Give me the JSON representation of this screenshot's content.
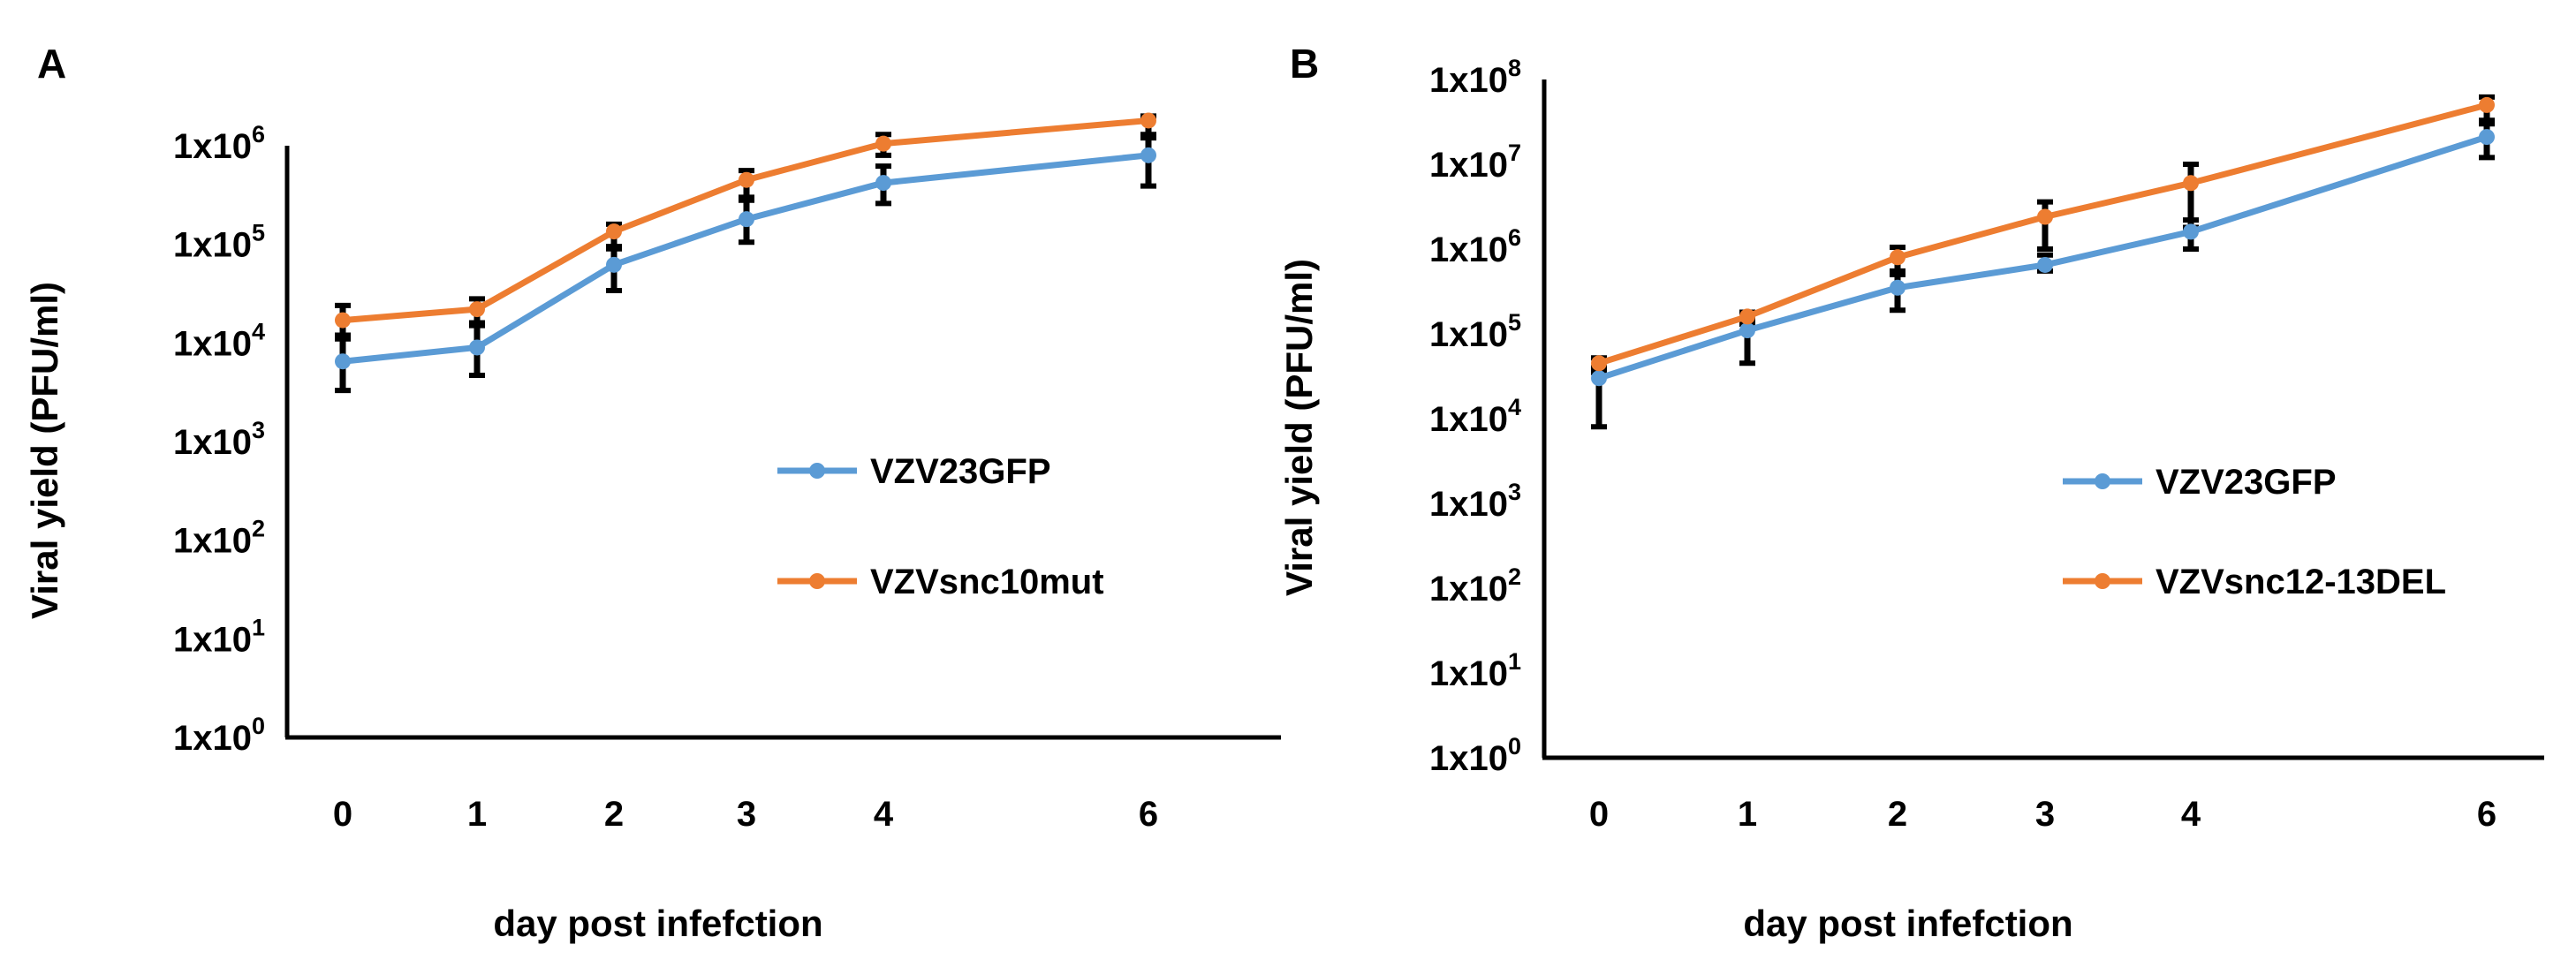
{
  "colors": {
    "series_blue": "#5B9BD5",
    "series_orange": "#ED7D31",
    "axis": "#000000",
    "error_bar": "#000000",
    "text": "#000000"
  },
  "chart_data": [
    {
      "panel_label": "A",
      "type": "line",
      "y_scale": "log10",
      "ylim": [
        1,
        1000000
      ],
      "ylabel": "Viral yield (PFU/ml)",
      "xlabel": "day post infefction",
      "x": [
        0,
        1,
        2,
        3,
        4,
        6
      ],
      "x_tick_labels": [
        "0",
        "1",
        "2",
        "3",
        "4",
        "6"
      ],
      "y_tick_labels": [
        {
          "base": "1x10",
          "exp": "0"
        },
        {
          "base": "1x10",
          "exp": "1"
        },
        {
          "base": "1x10",
          "exp": "2"
        },
        {
          "base": "1x10",
          "exp": "3"
        },
        {
          "base": "1x10",
          "exp": "4"
        },
        {
          "base": "1x10",
          "exp": "5"
        },
        {
          "base": "1x10",
          "exp": "6"
        }
      ],
      "legend_position": "center-right",
      "series": [
        {
          "name": "VZV23GFP",
          "color": "#5B9BD5",
          "values": [
            6500,
            9000,
            62000,
            180000,
            420000,
            800000
          ],
          "error_low": [
            3300,
            4700,
            34000,
            105000,
            260000,
            390000
          ],
          "error_high": [
            12000,
            16000,
            90000,
            280000,
            620000,
            1300000
          ]
        },
        {
          "name": "VZVsnc10mut",
          "color": "#ED7D31",
          "values": [
            17000,
            22000,
            135000,
            450000,
            1050000,
            1800000
          ],
          "error_low": [
            11000,
            15000,
            95000,
            300000,
            800000,
            1200000
          ],
          "error_high": [
            24000,
            28000,
            160000,
            560000,
            1300000,
            2000000
          ]
        }
      ]
    },
    {
      "panel_label": "B",
      "type": "line",
      "y_scale": "log10",
      "ylim": [
        1,
        100000000
      ],
      "ylabel": "Viral yield (PFU/ml)",
      "xlabel": "day post infefction",
      "x": [
        0,
        1,
        2,
        3,
        4,
        6
      ],
      "x_tick_labels": [
        "0",
        "1",
        "2",
        "3",
        "4",
        "6"
      ],
      "y_tick_labels": [
        {
          "base": "1x10",
          "exp": "0"
        },
        {
          "base": "1x10",
          "exp": "1"
        },
        {
          "base": "1x10",
          "exp": "2"
        },
        {
          "base": "1x10",
          "exp": "3"
        },
        {
          "base": "1x10",
          "exp": "4"
        },
        {
          "base": "1x10",
          "exp": "5"
        },
        {
          "base": "1x10",
          "exp": "6"
        },
        {
          "base": "1x10",
          "exp": "7"
        },
        {
          "base": "1x10",
          "exp": "8"
        }
      ],
      "legend_position": "center-right",
      "series": [
        {
          "name": "VZV23GFP",
          "color": "#5B9BD5",
          "values": [
            30000,
            110000,
            350000,
            650000,
            1600000,
            21000000
          ],
          "error_low": [
            8000,
            45000,
            190000,
            550000,
            1000000,
            12000000
          ],
          "error_high": [
            40000,
            150000,
            500000,
            850000,
            2200000,
            30000000
          ]
        },
        {
          "name": "VZVsnc12-13DEL",
          "color": "#ED7D31",
          "values": [
            45000,
            160000,
            800000,
            2400000,
            6000000,
            50000000
          ],
          "error_low": [
            35000,
            130000,
            550000,
            1000000,
            1800000,
            33000000
          ],
          "error_high": [
            52000,
            180000,
            1050000,
            3600000,
            10000000,
            62000000
          ]
        }
      ]
    }
  ]
}
